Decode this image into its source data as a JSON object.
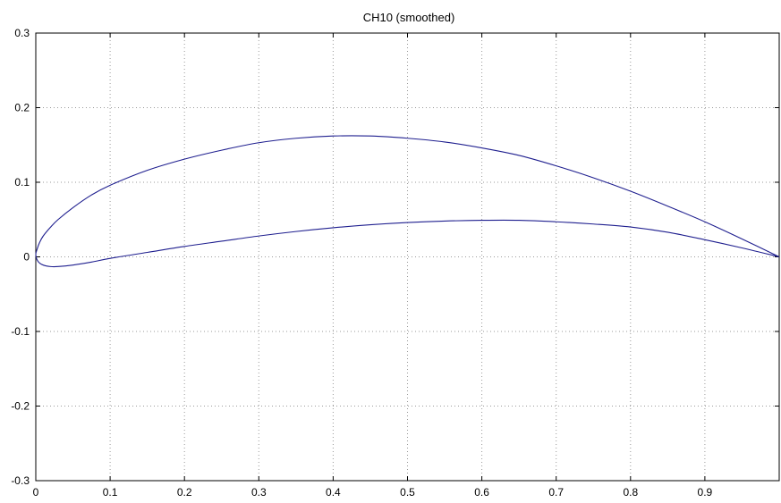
{
  "chart_data": {
    "type": "line",
    "title": "CH10 (smoothed)",
    "xlabel": "",
    "ylabel": "",
    "xlim": [
      0,
      1
    ],
    "ylim": [
      -0.3,
      0.3
    ],
    "grid": true,
    "x_ticks": [
      0,
      0.1,
      0.2,
      0.3,
      0.4,
      0.5,
      0.6,
      0.7,
      0.8,
      0.9
    ],
    "x_tick_labels": [
      "0",
      "0.1",
      "0.2",
      "0.3",
      "0.4",
      "0.5",
      "0.6",
      "0.7",
      "0.8",
      "0.9"
    ],
    "y_ticks": [
      -0.3,
      -0.2,
      -0.1,
      0,
      0.1,
      0.2,
      0.3
    ],
    "y_tick_labels": [
      "-0.3",
      "-0.2",
      "-0.1",
      "0",
      "0.1",
      "0.2",
      "0.3"
    ],
    "line_color": "#1f1f8f",
    "series": [
      {
        "x": [
          1.0,
          0.95,
          0.9,
          0.85,
          0.8,
          0.75,
          0.7,
          0.65,
          0.6,
          0.55,
          0.5,
          0.45,
          0.4,
          0.35,
          0.3,
          0.25,
          0.2,
          0.15,
          0.1,
          0.075,
          0.05,
          0.03,
          0.02,
          0.01,
          0.005,
          0.002,
          0.0,
          0.003,
          0.01,
          0.02,
          0.03,
          0.05,
          0.075,
          0.1,
          0.15,
          0.2,
          0.25,
          0.3,
          0.35,
          0.4,
          0.45,
          0.5,
          0.55,
          0.6,
          0.65,
          0.7,
          0.75,
          0.8,
          0.85,
          0.9,
          0.95,
          1.0
        ],
        "y": [
          0.0,
          0.024,
          0.047,
          0.068,
          0.088,
          0.106,
          0.122,
          0.136,
          0.146,
          0.154,
          0.159,
          0.162,
          0.162,
          0.159,
          0.153,
          0.143,
          0.131,
          0.116,
          0.096,
          0.083,
          0.066,
          0.05,
          0.04,
          0.028,
          0.019,
          0.011,
          0.003,
          -0.006,
          -0.011,
          -0.013,
          -0.013,
          -0.011,
          -0.007,
          -0.002,
          0.006,
          0.014,
          0.021,
          0.028,
          0.034,
          0.039,
          0.043,
          0.046,
          0.048,
          0.049,
          0.049,
          0.047,
          0.044,
          0.04,
          0.033,
          0.023,
          0.012,
          0.0
        ]
      }
    ]
  }
}
